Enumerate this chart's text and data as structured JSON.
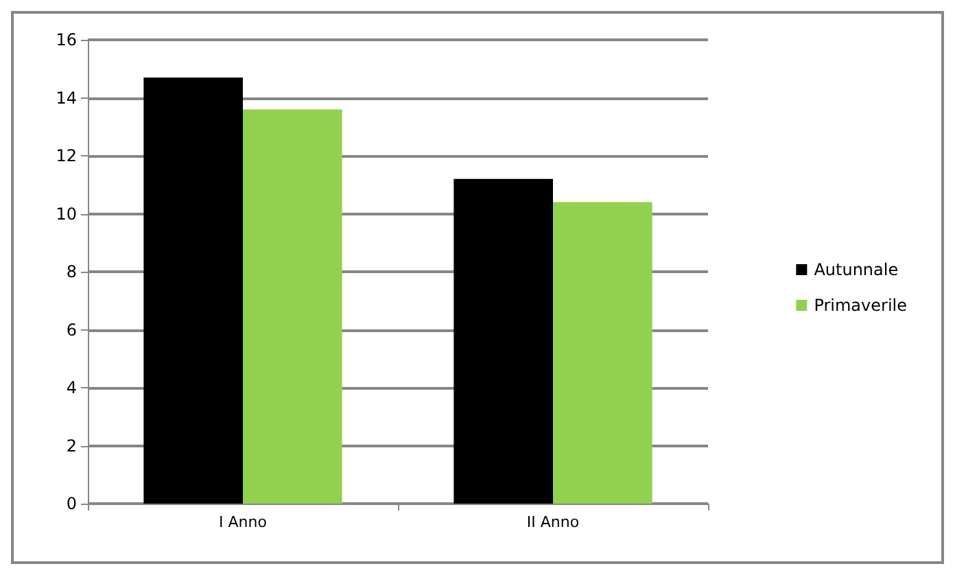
{
  "chart_data": {
    "type": "bar",
    "categories": [
      "I Anno",
      "II Anno"
    ],
    "series": [
      {
        "name": "Autunnale",
        "color": "#000000",
        "values": [
          14.7,
          11.2
        ]
      },
      {
        "name": "Primaverile",
        "color": "#92d050",
        "values": [
          13.6,
          10.4
        ]
      }
    ],
    "ylim": [
      0,
      16
    ],
    "yticks": [
      0,
      2,
      4,
      6,
      8,
      10,
      12,
      14,
      16
    ],
    "grid": "y",
    "legend": "right"
  }
}
